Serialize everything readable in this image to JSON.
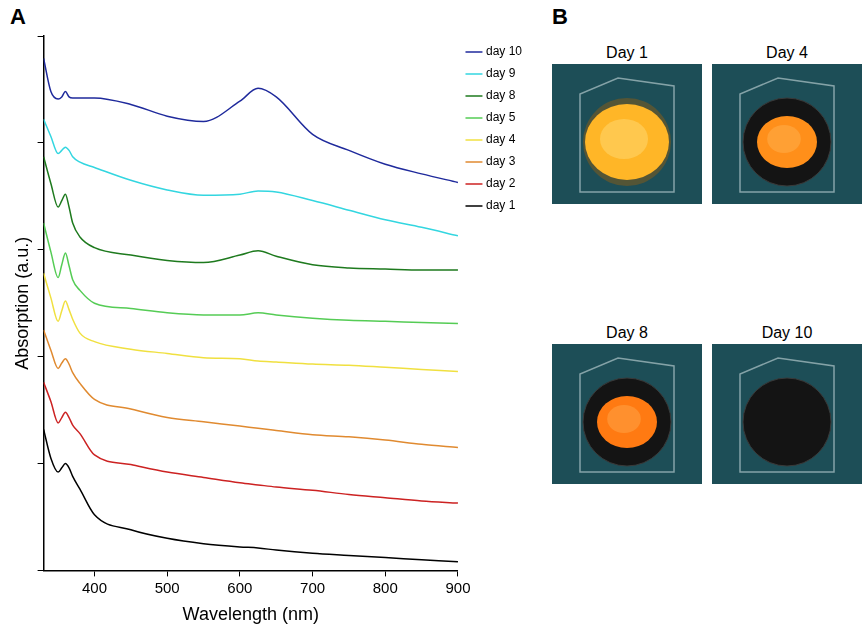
{
  "chart_data": {
    "type": "line",
    "panel_label": "A",
    "x_label": "Wavelength (nm)",
    "y_label": "Absorption (a.u.)",
    "x": [
      330,
      340,
      350,
      355,
      360,
      365,
      370,
      380,
      400,
      450,
      500,
      550,
      600,
      625,
      650,
      700,
      750,
      800,
      850,
      900
    ],
    "series": [
      {
        "name": "day 10",
        "color": "#1f2a9c",
        "values": [
          4.79,
          4.48,
          4.41,
          4.43,
          4.48,
          4.43,
          4.42,
          4.42,
          4.42,
          4.36,
          4.25,
          4.2,
          4.39,
          4.51,
          4.43,
          4.08,
          3.93,
          3.8,
          3.71,
          3.63
        ]
      },
      {
        "name": "day 9",
        "color": "#33d6e0",
        "values": [
          4.22,
          4.06,
          3.9,
          3.93,
          3.96,
          3.93,
          3.87,
          3.82,
          3.77,
          3.65,
          3.56,
          3.51,
          3.52,
          3.55,
          3.54,
          3.46,
          3.37,
          3.28,
          3.21,
          3.13
        ]
      },
      {
        "name": "day 8",
        "color": "#1e7a1e",
        "values": [
          3.87,
          3.62,
          3.4,
          3.46,
          3.52,
          3.4,
          3.25,
          3.12,
          3.02,
          2.95,
          2.9,
          2.88,
          2.95,
          2.99,
          2.94,
          2.86,
          2.83,
          2.82,
          2.81,
          2.81
        ]
      },
      {
        "name": "day 5",
        "color": "#55cc55",
        "values": [
          3.25,
          2.98,
          2.74,
          2.86,
          2.97,
          2.85,
          2.72,
          2.62,
          2.5,
          2.45,
          2.41,
          2.39,
          2.39,
          2.41,
          2.39,
          2.36,
          2.34,
          2.33,
          2.32,
          2.31
        ]
      },
      {
        "name": "day 4",
        "color": "#f0e040",
        "values": [
          2.78,
          2.55,
          2.33,
          2.43,
          2.52,
          2.44,
          2.35,
          2.22,
          2.14,
          2.07,
          2.03,
          1.99,
          1.98,
          1.96,
          1.95,
          1.93,
          1.92,
          1.9,
          1.88,
          1.86
        ]
      },
      {
        "name": "day 3",
        "color": "#e08a30",
        "values": [
          2.25,
          2.06,
          1.89,
          1.94,
          1.98,
          1.93,
          1.85,
          1.75,
          1.6,
          1.51,
          1.43,
          1.39,
          1.35,
          1.33,
          1.31,
          1.27,
          1.25,
          1.22,
          1.18,
          1.15
        ]
      },
      {
        "name": "day 2",
        "color": "#cc2222",
        "values": [
          1.76,
          1.58,
          1.38,
          1.43,
          1.48,
          1.43,
          1.36,
          1.28,
          1.08,
          0.99,
          0.92,
          0.87,
          0.82,
          0.8,
          0.78,
          0.75,
          0.71,
          0.68,
          0.65,
          0.63
        ]
      },
      {
        "name": "day 1",
        "color": "#000000",
        "values": [
          1.32,
          1.05,
          0.92,
          0.96,
          1.0,
          0.96,
          0.88,
          0.76,
          0.52,
          0.38,
          0.3,
          0.25,
          0.22,
          0.21,
          0.19,
          0.16,
          0.14,
          0.12,
          0.1,
          0.08
        ]
      }
    ],
    "xlim": [
      330,
      900
    ],
    "xticks": [
      400,
      500,
      600,
      700,
      800,
      900
    ],
    "ylim": [
      0,
      5
    ],
    "yticks": [
      0,
      1,
      2,
      3,
      4,
      5
    ],
    "tick_labels": "x",
    "grid": false,
    "legend": "right"
  },
  "photos": {
    "panel_label": "B",
    "labels": [
      "Day 1",
      "Day 4",
      "Day 8",
      "Day 10"
    ]
  }
}
